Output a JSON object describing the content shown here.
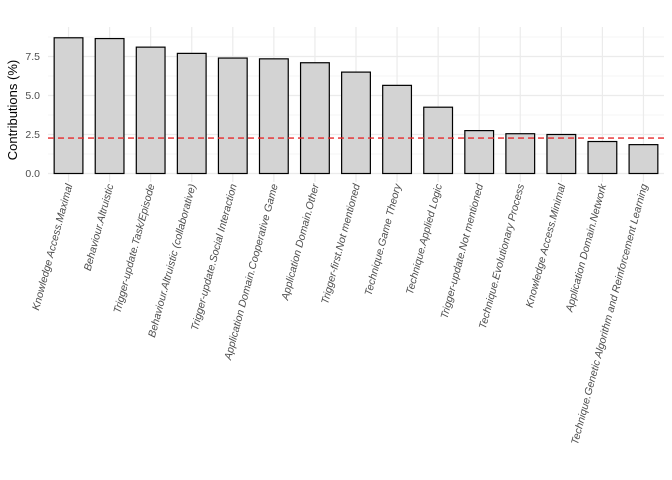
{
  "chart_data": {
    "type": "bar",
    "title": "",
    "xlabel": "",
    "ylabel": "Contributions (%)",
    "ylim": [
      0,
      9.0
    ],
    "yticks": [
      0.0,
      2.5,
      5.0,
      7.5
    ],
    "ytick_labels": [
      "0.0",
      "2.5",
      "5.0",
      "7.5"
    ],
    "grid": true,
    "legend": "none",
    "categories": [
      "Knowledge Access.Maximal",
      "Behaviour.Altruistic",
      "Trigger-update.Task/Episode",
      "Behaviour.Altruistic (collaborative)",
      "Trigger-update.Social Interaction",
      "Application Domain.Cooperative Game",
      "Application Domain.Other",
      "Trigger-first.Not mentioned",
      "Technique.Game Theory",
      "Technique.Applied Logic",
      "Trigger-update.Not mentioned",
      "Technique.Evolutionary Process",
      "Knowledge Access.Minimal",
      "Application Domain.Network",
      "Technique.Genetic Algorithm and Reinforcement Learning"
    ],
    "values": [
      8.7,
      8.65,
      8.1,
      7.7,
      7.4,
      7.35,
      7.1,
      6.5,
      5.65,
      4.25,
      2.75,
      2.55,
      2.5,
      2.05,
      1.85
    ],
    "reference_line": {
      "value": 2.27,
      "style": "dashed",
      "color": "#e8282b"
    },
    "bar_fill": "#d3d3d3",
    "bar_stroke": "#000000",
    "grid_color": "#ebebeb"
  }
}
